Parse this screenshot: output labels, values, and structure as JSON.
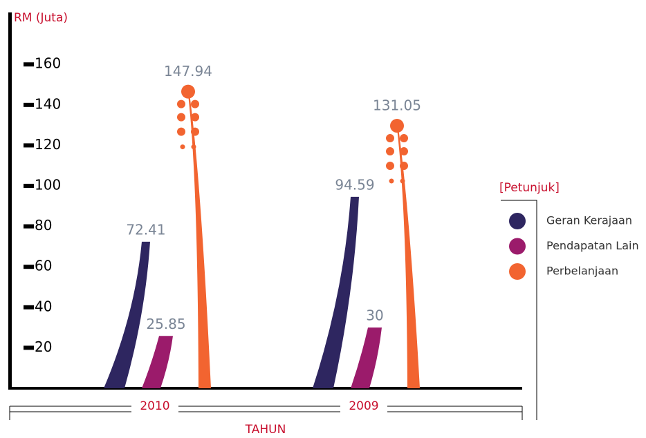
{
  "chart_data": {
    "type": "bar",
    "y_label": "RM (Juta)",
    "x_label": "TAHUN",
    "legend_title": "[Petunjuk]",
    "categories": [
      "2010",
      "2009"
    ],
    "series": [
      {
        "name": "Geran Kerajaan",
        "color": "#2e2660",
        "values": [
          72.41,
          94.59
        ]
      },
      {
        "name": "Pendapatan Lain",
        "color": "#9b1b6b",
        "values": [
          25.85,
          30
        ]
      },
      {
        "name": "Perbelanjaan",
        "color": "#f26430",
        "values": [
          147.94,
          131.05
        ]
      }
    ],
    "ylim": [
      0,
      185
    ],
    "yticks": [
      20,
      40,
      60,
      80,
      100,
      120,
      140,
      160
    ],
    "legend": "right"
  }
}
